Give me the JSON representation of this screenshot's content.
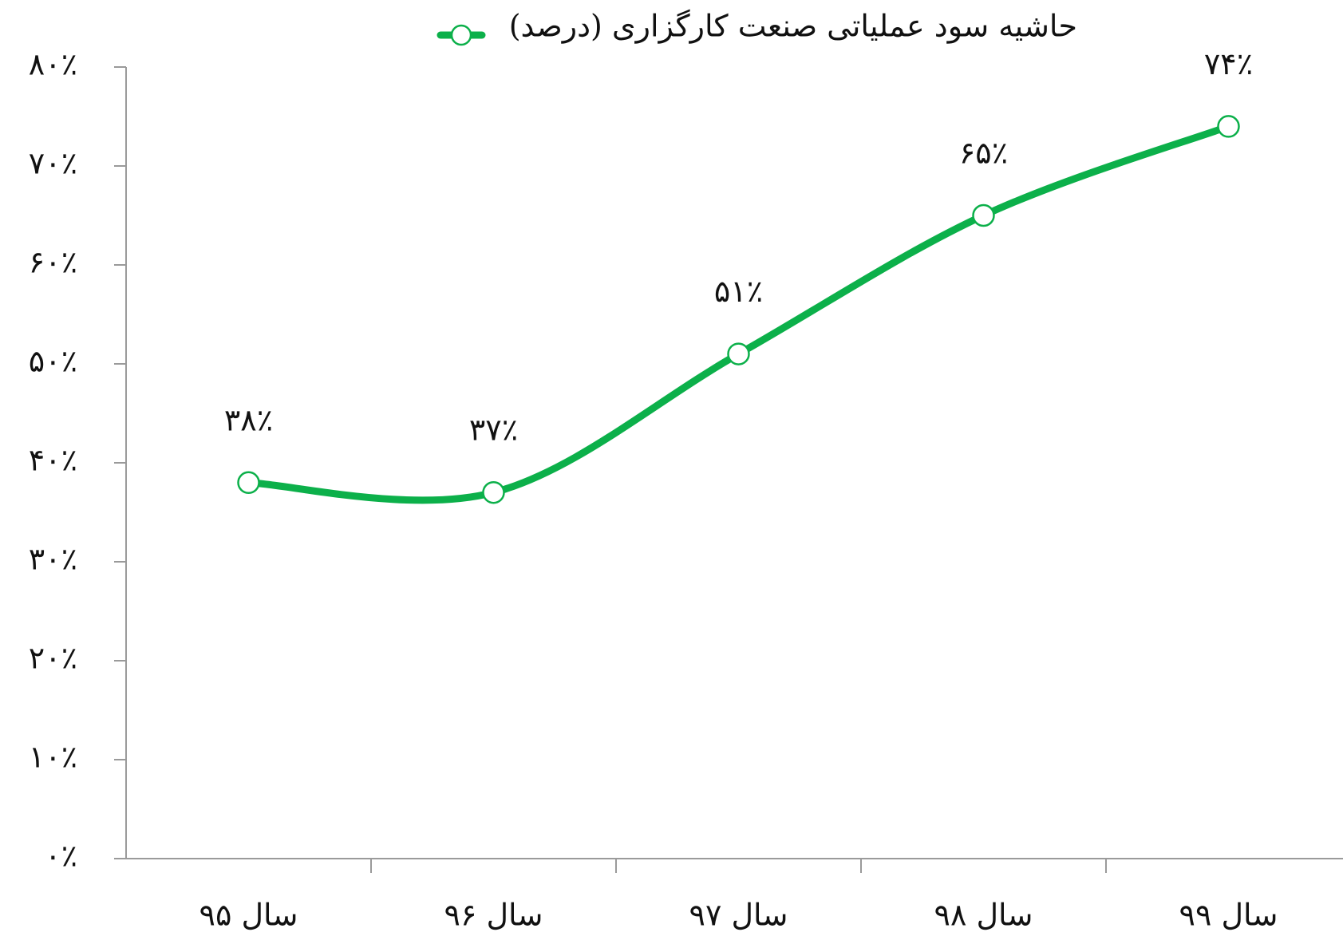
{
  "chart_data": {
    "type": "line",
    "categories": [
      "سال ۹۵",
      "سال ۹۶",
      "سال ۹۷",
      "سال ۹۸",
      "سال ۹۹"
    ],
    "series": [
      {
        "name": "حاشیه سود عملیاتی صنعت کارگزاری (درصد)",
        "color": "#0cb04a",
        "values": [
          38,
          37,
          51,
          65,
          74
        ],
        "value_labels": [
          "۳۸٪",
          "۳۷٪",
          "۵۱٪",
          "۶۵٪",
          "۷۴٪"
        ]
      }
    ],
    "ylim": [
      0,
      80
    ],
    "yticks": [
      {
        "value": 0,
        "label": "۰٪"
      },
      {
        "value": 10,
        "label": "۱۰٪"
      },
      {
        "value": 20,
        "label": "۲۰٪"
      },
      {
        "value": 30,
        "label": "۳۰٪"
      },
      {
        "value": 40,
        "label": "۴۰٪"
      },
      {
        "value": 50,
        "label": "۵۰٪"
      },
      {
        "value": 60,
        "label": "۶۰٪"
      },
      {
        "value": 70,
        "label": "۷۰٪"
      },
      {
        "value": 80,
        "label": "۸۰٪"
      }
    ],
    "legend": "top",
    "grid": false,
    "smooth": true
  }
}
